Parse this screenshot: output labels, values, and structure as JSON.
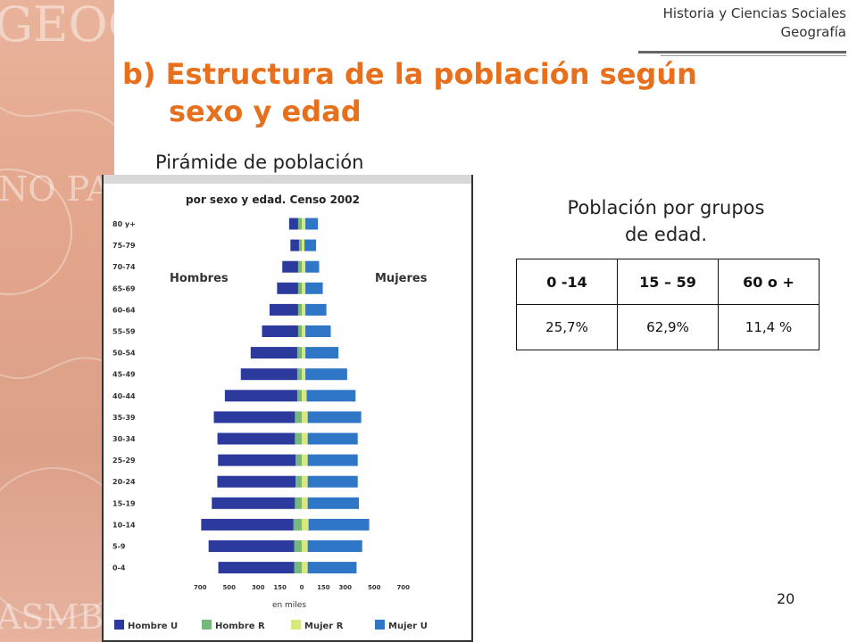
{
  "header": {
    "line1": "Historia y Ciencias Sociales",
    "line2": "Geografía"
  },
  "title": {
    "line1": "b) Estructura de la población según",
    "line2": "sexo y edad"
  },
  "pyramid_caption": "Pirámide de población",
  "table_caption": {
    "line1": "Población por grupos",
    "line2": "de edad."
  },
  "age_table": {
    "headers": [
      "0 -14",
      "15 – 59",
      "60 o +"
    ],
    "values": [
      "25,7%",
      "62,9%",
      "11,4 %"
    ]
  },
  "page_number": "20",
  "chart_data": {
    "type": "bar",
    "subtype": "population-pyramid",
    "title": "por sexo y edad. Censo 2002",
    "side_labels": {
      "left": "Hombres",
      "right": "Mujeres"
    },
    "xlabel": "en miles",
    "x_ticks": [
      "700",
      "500",
      "300",
      "150",
      "0",
      "150",
      "300",
      "500",
      "700"
    ],
    "categories": [
      "80 y+",
      "75-79",
      "70-74",
      "65-69",
      "60-64",
      "55-59",
      "50-54",
      "45-49",
      "40-44",
      "35-39",
      "30-34",
      "25-29",
      "20-24",
      "15-19",
      "10-14",
      "5-9",
      "0-4"
    ],
    "series": [
      {
        "name": "Hombre U",
        "side": "left",
        "color": "#2b3a9c",
        "values": [
          62,
          59,
          109,
          145,
          197,
          249,
          321,
          389,
          499,
          559,
          534,
          534,
          539,
          573,
          636,
          590,
          523
        ]
      },
      {
        "name": "Hombre R",
        "side": "left",
        "color": "#74b87e",
        "values": [
          25,
          19,
          25,
          25,
          25,
          25,
          31,
          31,
          31,
          47,
          47,
          43,
          43,
          47,
          57,
          52,
          52
        ]
      },
      {
        "name": "Mujer R",
        "side": "right",
        "color": "#d9e87e",
        "values": [
          25,
          19,
          25,
          25,
          25,
          25,
          25,
          25,
          34,
          41,
          41,
          41,
          41,
          41,
          47,
          41,
          41
        ]
      },
      {
        "name": "Mujer U",
        "side": "right",
        "color": "#2f77c6",
        "values": [
          87,
          80,
          95,
          120,
          145,
          175,
          228,
          288,
          337,
          369,
          345,
          345,
          345,
          353,
          418,
          376,
          337
        ]
      }
    ],
    "legend": [
      "Hombre U",
      "Hombre R",
      "Mujer R",
      "Mujer U"
    ],
    "legend_placement": "bottom"
  }
}
